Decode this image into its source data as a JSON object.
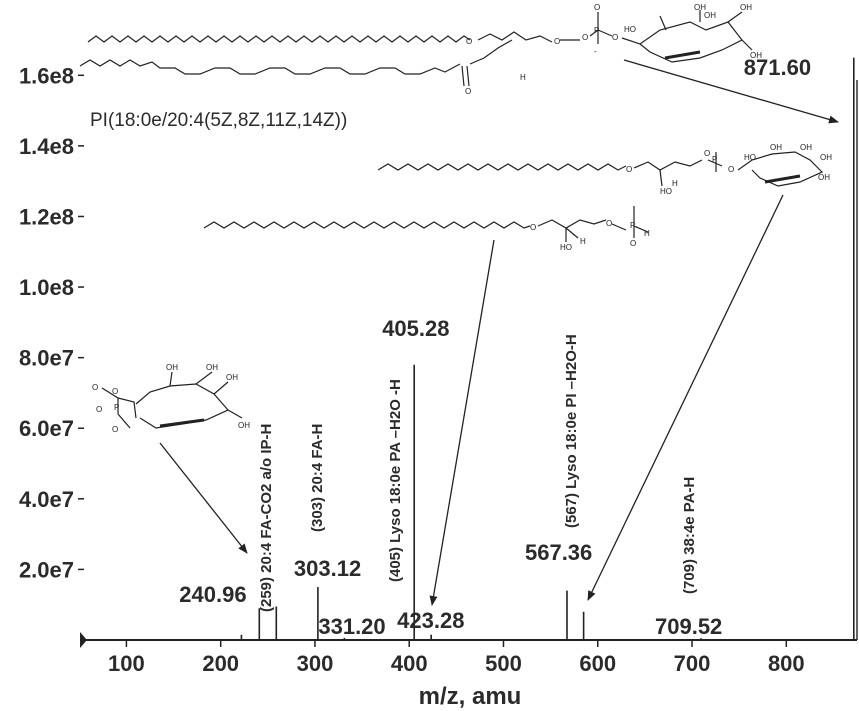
{
  "colors": {
    "ink": "#2b2b2b",
    "line": "#222222",
    "background": "#ffffff"
  },
  "chart_data": {
    "type": "bar",
    "title": "PI(18:0e/20:4(5Z,8Z,11Z,14Z))",
    "xlabel": "m/z, amu",
    "ylabel": "",
    "xlim": [
      55,
      875
    ],
    "ylim": [
      0,
      170000000.0
    ],
    "x_ticks": [
      100,
      200,
      300,
      400,
      500,
      600,
      700,
      800
    ],
    "x_tick_labels": [
      "100",
      "200",
      "300",
      "400",
      "500",
      "600",
      "700",
      "800"
    ],
    "y_ticks": [
      20000000.0,
      40000000.0,
      60000000.0,
      80000000.0,
      100000000.0,
      120000000.0,
      140000000.0,
      160000000.0
    ],
    "y_tick_labels": [
      "2.0e7",
      "4.0e7",
      "6.0e7",
      "8.0e7",
      "1.0e8",
      "1.2e8",
      "1.4e8",
      "1.6e8"
    ],
    "grid": false,
    "peaks": [
      {
        "mz": 222.0,
        "intensity": 1500000.0
      },
      {
        "mz": 240.96,
        "intensity": 9000000.0,
        "label": "240.96"
      },
      {
        "mz": 259.0,
        "intensity": 9500000.0
      },
      {
        "mz": 303.12,
        "intensity": 15000000.0,
        "label": "303.12"
      },
      {
        "mz": 331.2,
        "intensity": 600000.0,
        "label": "331.20"
      },
      {
        "mz": 405.28,
        "intensity": 78000000.0,
        "label": "405.28"
      },
      {
        "mz": 423.28,
        "intensity": 1500000.0,
        "label": "423.28"
      },
      {
        "mz": 567.36,
        "intensity": 14000000.0,
        "label": "567.36"
      },
      {
        "mz": 585.0,
        "intensity": 8000000.0
      },
      {
        "mz": 709.52,
        "intensity": 500000.0,
        "label": "709.52"
      },
      {
        "mz": 871.6,
        "intensity": 165000000.0,
        "label": "871.60"
      }
    ],
    "fragment_annotations": [
      "(259) 20:4 FA-CO2 a/o IP-H",
      "(303) 20:4 FA-H",
      "(405) Lyso 18:0e PA –H2O -H",
      "(567) Lyso 18:0e PI –H2O-H",
      "(709) 38:4e PA-H"
    ],
    "structure_atom_labels": [
      "O",
      "OH",
      "P",
      "H",
      "HO"
    ]
  }
}
